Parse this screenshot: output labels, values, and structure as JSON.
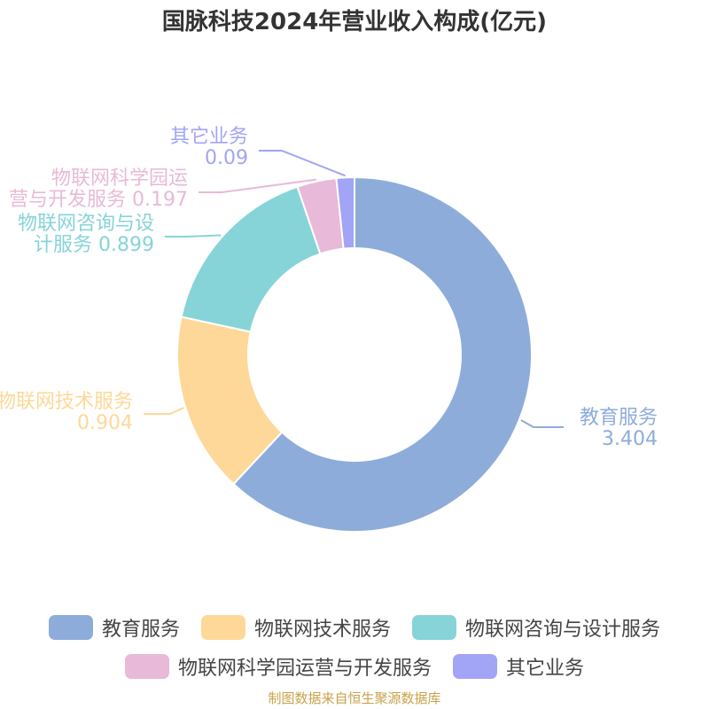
{
  "chart_data": {
    "type": "pie",
    "variant": "donut",
    "title": "国脉科技2024年营业收入构成(亿元)",
    "slices": [
      {
        "name": "教育服务",
        "label_lines": [
          "教育服务",
          "3.404"
        ],
        "value": 3.404,
        "color": "#8eacd9"
      },
      {
        "name": "物联网技术服务",
        "label_lines": [
          "物联网技术服务",
          "0.904"
        ],
        "value": 0.904,
        "color": "#fdd898"
      },
      {
        "name": "物联网咨询与设计服务",
        "label_lines": [
          "物联网咨询与设",
          "计服务 0.899"
        ],
        "value": 0.899,
        "color": "#86d4d8"
      },
      {
        "name": "物联网科学园运营与开发服务",
        "label_lines": [
          "物联网科学园运",
          "营与开发服务 0.197"
        ],
        "value": 0.197,
        "color": "#e8b9d8"
      },
      {
        "name": "其它业务",
        "label_lines": [
          "其它业务",
          "0.09"
        ],
        "value": 0.09,
        "color": "#a2a4f5"
      }
    ],
    "legend_position": "bottom"
  },
  "source_note": "制图数据来自恒生聚源数据库"
}
